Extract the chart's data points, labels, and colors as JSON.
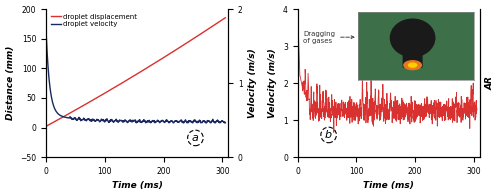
{
  "panel_a": {
    "xlabel": "Time (ms)",
    "ylabel_left": "Distance (mm)",
    "ylabel_right": "Velocity (m/s)",
    "xlim": [
      0,
      310
    ],
    "ylim_left": [
      -50,
      200
    ],
    "ylim_right": [
      0,
      2
    ],
    "yticks_left": [
      -50,
      0,
      50,
      100,
      150,
      200
    ],
    "yticks_right": [
      0,
      1,
      2
    ],
    "xticks": [
      0,
      100,
      200,
      300
    ],
    "legend_displacement": "droplet displacement",
    "legend_velocity": "droplet velocity",
    "color_displacement": "#d93030",
    "color_velocity": "#1c2860",
    "label_a": "a"
  },
  "panel_b": {
    "xlabel": "Time (ms)",
    "ylabel_left": "Velocity (m/s)",
    "ylabel_right": "AR",
    "xlim": [
      0,
      310
    ],
    "ylim": [
      0,
      4
    ],
    "yticks": [
      0,
      1,
      2,
      3,
      4
    ],
    "xticks": [
      0,
      100,
      200,
      300
    ],
    "color_line": "#d93030",
    "annotation_text": "Dragging\nof gases",
    "label_b": "b"
  },
  "fig_bgcolor": "#ffffff"
}
